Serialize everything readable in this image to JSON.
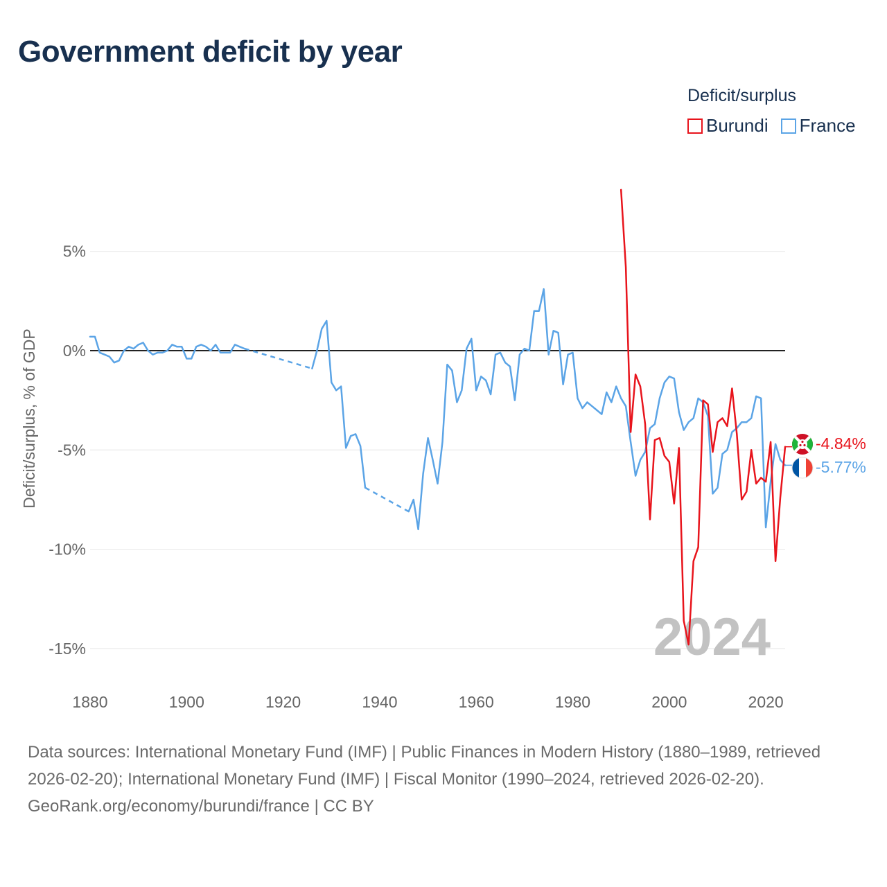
{
  "title": "Government deficit by year",
  "legend": {
    "title": "Deficit/surplus",
    "items": [
      {
        "name": "Burundi",
        "color": "#e8141c"
      },
      {
        "name": "France",
        "color": "#5ba4e6"
      }
    ]
  },
  "chart_data": {
    "type": "line",
    "title": "Government deficit by year",
    "xlabel": "",
    "ylabel": "Deficit/surplus, % of GDP",
    "xlim": [
      1880,
      2024
    ],
    "ylim": [
      -17,
      9
    ],
    "x_ticks": [
      1880,
      1900,
      1920,
      1940,
      1960,
      1980,
      2000,
      2020
    ],
    "x_tick_labels": [
      "1880",
      "1900",
      "1920",
      "1940",
      "1960",
      "1980",
      "2000",
      "2020"
    ],
    "y_ticks": [
      5,
      0,
      -5,
      -10,
      -15
    ],
    "y_tick_labels": [
      "5%",
      "0%",
      "-5%",
      "-10%",
      "-15%"
    ],
    "grid": true,
    "year_label": "2024",
    "series": [
      {
        "name": "Burundi",
        "color": "#e8141c",
        "end_label": "-4.84%",
        "x": [
          1990,
          1991,
          1992,
          1993,
          1994,
          1995,
          1996,
          1997,
          1998,
          1999,
          2000,
          2001,
          2002,
          2003,
          2004,
          2005,
          2006,
          2007,
          2008,
          2009,
          2010,
          2011,
          2012,
          2013,
          2014,
          2015,
          2016,
          2017,
          2018,
          2019,
          2020,
          2021,
          2022,
          2023,
          2024
        ],
        "y": [
          8.1,
          4.2,
          -4.1,
          -1.2,
          -1.8,
          -3.7,
          -8.5,
          -4.5,
          -4.4,
          -5.3,
          -5.6,
          -7.7,
          -4.9,
          -13.6,
          -14.8,
          -10.6,
          -9.9,
          -2.5,
          -2.7,
          -5.1,
          -3.6,
          -3.4,
          -3.8,
          -1.9,
          -4.2,
          -7.5,
          -7.1,
          -5.0,
          -6.7,
          -6.4,
          -6.6,
          -4.6,
          -10.6,
          -7.4,
          -4.84
        ]
      },
      {
        "name": "France",
        "color": "#5ba4e6",
        "end_label": "-5.77%",
        "gaps": [
          [
            1912,
            1926
          ],
          [
            1937,
            1946
          ]
        ],
        "x": [
          1880,
          1881,
          1882,
          1883,
          1884,
          1885,
          1886,
          1887,
          1888,
          1889,
          1890,
          1891,
          1892,
          1893,
          1894,
          1895,
          1896,
          1897,
          1898,
          1899,
          1900,
          1901,
          1902,
          1903,
          1904,
          1905,
          1906,
          1907,
          1908,
          1909,
          1910,
          1911,
          1912,
          1926,
          1927,
          1928,
          1929,
          1930,
          1931,
          1932,
          1933,
          1934,
          1935,
          1936,
          1937,
          1946,
          1947,
          1948,
          1949,
          1950,
          1951,
          1952,
          1953,
          1954,
          1955,
          1956,
          1957,
          1958,
          1959,
          1960,
          1961,
          1962,
          1963,
          1964,
          1965,
          1966,
          1967,
          1968,
          1969,
          1970,
          1971,
          1972,
          1973,
          1974,
          1975,
          1976,
          1977,
          1978,
          1979,
          1980,
          1981,
          1982,
          1983,
          1984,
          1985,
          1986,
          1987,
          1988,
          1989,
          1990,
          1991,
          1992,
          1993,
          1994,
          1995,
          1996,
          1997,
          1998,
          1999,
          2000,
          2001,
          2002,
          2003,
          2004,
          2005,
          2006,
          2007,
          2008,
          2009,
          2010,
          2011,
          2012,
          2013,
          2014,
          2015,
          2016,
          2017,
          2018,
          2019,
          2020,
          2021,
          2022,
          2023,
          2024
        ],
        "y": [
          0.7,
          0.7,
          -0.1,
          -0.2,
          -0.3,
          -0.6,
          -0.5,
          0.0,
          0.2,
          0.1,
          0.3,
          0.4,
          0.0,
          -0.2,
          -0.1,
          -0.1,
          0.0,
          0.3,
          0.2,
          0.2,
          -0.4,
          -0.4,
          0.2,
          0.3,
          0.2,
          0.0,
          0.3,
          -0.1,
          -0.1,
          -0.1,
          0.3,
          0.2,
          0.1,
          -0.9,
          0.0,
          1.1,
          1.5,
          -1.6,
          -2.0,
          -1.8,
          -4.9,
          -4.3,
          -4.2,
          -4.8,
          -6.9,
          -8.1,
          -7.5,
          -9.0,
          -6.2,
          -4.4,
          -5.5,
          -6.7,
          -4.6,
          -0.7,
          -1.0,
          -2.6,
          -2.0,
          0.1,
          0.6,
          -2.0,
          -1.3,
          -1.5,
          -2.2,
          -0.2,
          -0.1,
          -0.6,
          -0.8,
          -2.5,
          -0.2,
          0.1,
          0.0,
          2.0,
          2.0,
          3.1,
          -0.2,
          1.0,
          0.9,
          -1.7,
          -0.2,
          -0.1,
          -2.4,
          -2.9,
          -2.6,
          -2.8,
          -3.0,
          -3.2,
          -2.1,
          -2.6,
          -1.8,
          -2.4,
          -2.8,
          -4.6,
          -6.3,
          -5.5,
          -5.1,
          -3.9,
          -3.7,
          -2.4,
          -1.6,
          -1.3,
          -1.4,
          -3.1,
          -4.0,
          -3.6,
          -3.4,
          -2.4,
          -2.6,
          -3.3,
          -7.2,
          -6.9,
          -5.2,
          -5.0,
          -4.1,
          -3.9,
          -3.6,
          -3.6,
          -3.4,
          -2.3,
          -2.4,
          -8.9,
          -6.6,
          -4.7,
          -5.5,
          -5.77
        ]
      }
    ]
  },
  "footer": {
    "sources": "Data sources: International Monetary Fund (IMF) | Public Finances in Modern History (1880–1989, retrieved 2026-02-20); International Monetary Fund (IMF) | Fiscal Monitor (1990–2024, retrieved 2026-02-20).",
    "credit": "GeoRank.org/economy/burundi/france | CC BY"
  }
}
